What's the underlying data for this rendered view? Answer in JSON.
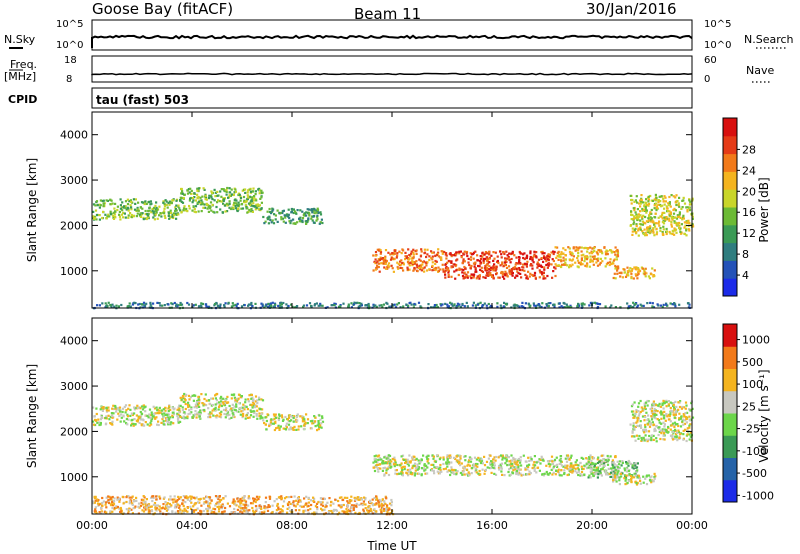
{
  "header": {
    "station": "Goose Bay (fitACF)",
    "beam": "Beam 11",
    "date": "30/Jan/2016"
  },
  "summary_panels": {
    "nsky_label": "N.Sky",
    "nsky_ticks": [
      "10^5",
      "10^0"
    ],
    "nsearch_label": "N.Search",
    "nsearch_ticks": [
      "10^5",
      "10^0"
    ],
    "freq_label": "Freq.",
    "freq_unit": "[MHz]",
    "freq_ticks": [
      "18",
      "8"
    ],
    "nave_label": "Nave",
    "nave_ticks": [
      "60",
      "0"
    ],
    "cpid_label": "CPID",
    "cpid_value": "tau (fast) 503"
  },
  "chart_data": [
    {
      "type": "heatmap",
      "name": "power-panel",
      "ylabel": "Slant Range [km]",
      "xlabel": "",
      "xticks": [
        "00:00",
        "04:00",
        "08:00",
        "12:00",
        "16:00",
        "20:00",
        "00:00"
      ],
      "yticks": [
        1000,
        2000,
        3000,
        4000
      ],
      "xlim": [
        0,
        24
      ],
      "ylim": [
        180,
        4500
      ],
      "colorbar": {
        "label": "Power [dB]",
        "ticks": [
          "4",
          "8",
          "12",
          "16",
          "20",
          "24",
          "28"
        ],
        "colors": [
          "#1c2be8",
          "#2452b8",
          "#2f7d7f",
          "#3a9a55",
          "#6cba35",
          "#c9d52a",
          "#f4b41f",
          "#f27a1a",
          "#e53b17",
          "#d8100f"
        ]
      },
      "regions": [
        {
          "t": [
            0.0,
            3.5
          ],
          "r": [
            2150,
            2600
          ],
          "level": 4
        },
        {
          "t": [
            3.5,
            6.8
          ],
          "r": [
            2300,
            2850
          ],
          "level": 4
        },
        {
          "t": [
            6.8,
            9.2
          ],
          "r": [
            2050,
            2400
          ],
          "level": 3
        },
        {
          "t": [
            11.2,
            14.0
          ],
          "r": [
            1000,
            1500
          ],
          "level": 7
        },
        {
          "t": [
            14.0,
            18.5
          ],
          "r": [
            850,
            1450
          ],
          "level": 8
        },
        {
          "t": [
            18.5,
            21.0
          ],
          "r": [
            1100,
            1550
          ],
          "level": 6
        },
        {
          "t": [
            20.8,
            22.5
          ],
          "r": [
            850,
            1100
          ],
          "level": 6
        },
        {
          "t": [
            21.5,
            24.0
          ],
          "r": [
            1800,
            2700
          ],
          "level": 5
        },
        {
          "t": [
            0.0,
            24.0
          ],
          "r": [
            200,
            320
          ],
          "level": 2
        }
      ]
    },
    {
      "type": "heatmap",
      "name": "velocity-panel",
      "ylabel": "Slant Range [km]",
      "xlabel": "Time UT",
      "xticks": [
        "00:00",
        "04:00",
        "08:00",
        "12:00",
        "16:00",
        "20:00",
        "00:00"
      ],
      "yticks": [
        1000,
        2000,
        3000,
        4000
      ],
      "xlim": [
        0,
        24
      ],
      "ylim": [
        180,
        4500
      ],
      "colorbar": {
        "label": "Velocity [m s⁻¹]",
        "ticks": [
          "1000",
          "500",
          "100",
          "25",
          "-25",
          "-100",
          "-500",
          "-1000"
        ],
        "colors": [
          "#1c2be8",
          "#2563a8",
          "#3a9a55",
          "#6cd64a",
          "#c8c8c0",
          "#f4b41f",
          "#f27a1a",
          "#d8100f"
        ]
      },
      "regions": [
        {
          "t": [
            0.0,
            3.5
          ],
          "r": [
            2150,
            2600
          ],
          "level": 4
        },
        {
          "t": [
            3.5,
            6.8
          ],
          "r": [
            2300,
            2850
          ],
          "level": 4
        },
        {
          "t": [
            6.8,
            9.2
          ],
          "r": [
            2050,
            2400
          ],
          "level": 4
        },
        {
          "t": [
            11.2,
            21.0
          ],
          "r": [
            1050,
            1500
          ],
          "level": 4
        },
        {
          "t": [
            19.8,
            21.8
          ],
          "r": [
            1000,
            1400
          ],
          "level": 3
        },
        {
          "t": [
            20.8,
            22.5
          ],
          "r": [
            850,
            1100
          ],
          "level": 4
        },
        {
          "t": [
            21.5,
            24.0
          ],
          "r": [
            1800,
            2700
          ],
          "level": 4
        },
        {
          "t": [
            0.0,
            12.0
          ],
          "r": [
            200,
            600
          ],
          "level": 5
        }
      ]
    }
  ]
}
